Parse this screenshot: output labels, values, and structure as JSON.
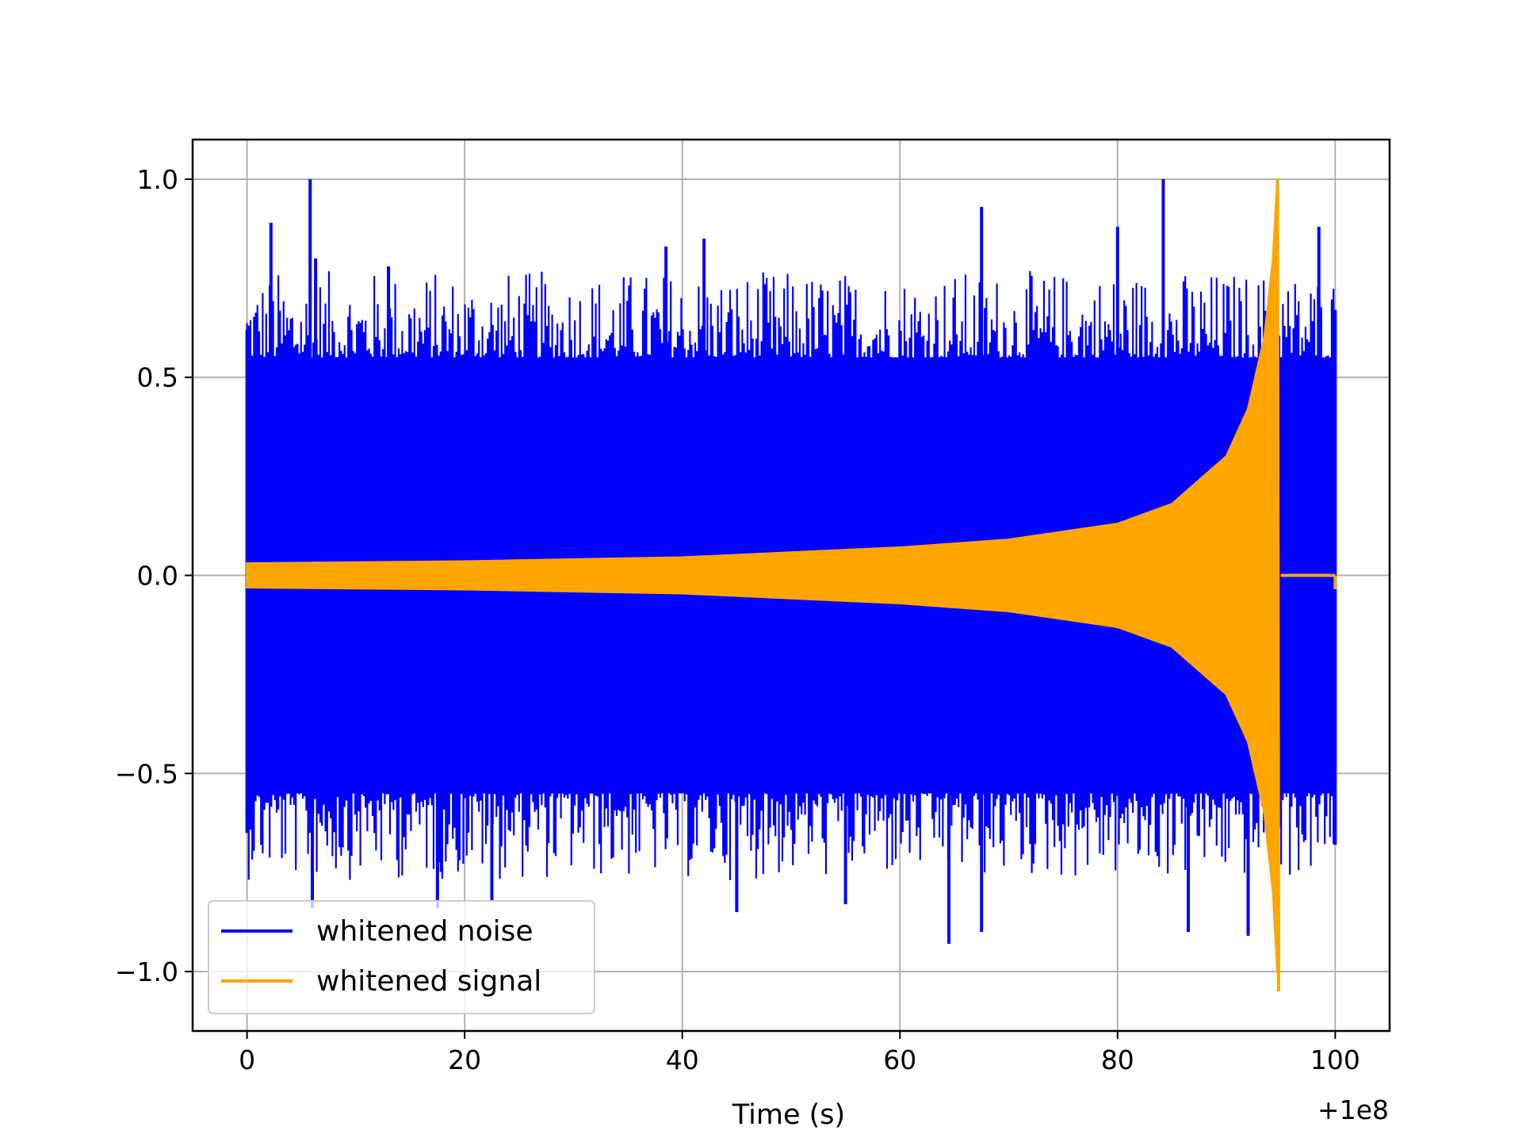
{
  "chart_data": {
    "type": "line",
    "title": "",
    "xlabel": "Time (s)",
    "ylabel": "",
    "x_offset_label": "+1e8",
    "xlim": [
      -5,
      105
    ],
    "ylim": [
      -1.15,
      1.1
    ],
    "xticks": [
      0,
      20,
      40,
      60,
      80,
      100
    ],
    "xtick_labels": [
      "0",
      "20",
      "40",
      "60",
      "80",
      "100"
    ],
    "yticks": [
      1.0,
      0.5,
      0.0,
      -0.5,
      -1.0
    ],
    "ytick_labels": [
      "1.0",
      "0.5",
      "0.0",
      "−0.5",
      "−1.0"
    ],
    "grid": true,
    "legend_position": "lower-left",
    "series": [
      {
        "name": "whitened noise",
        "color": "#0000ff",
        "x_range": [
          0,
          100
        ],
        "envelope": {
          "max": 0.55,
          "min": -0.55
        },
        "peak_max": [
          {
            "x": 0.0,
            "y": 0.62
          },
          {
            "x": 2.2,
            "y": 0.89
          },
          {
            "x": 5.8,
            "y": 1.0
          },
          {
            "x": 6.3,
            "y": 0.8
          },
          {
            "x": 13.0,
            "y": 0.78
          },
          {
            "x": 38.5,
            "y": 0.83
          },
          {
            "x": 42.0,
            "y": 0.85
          },
          {
            "x": 67.5,
            "y": 0.93
          },
          {
            "x": 80.0,
            "y": 0.88
          },
          {
            "x": 84.2,
            "y": 1.0
          },
          {
            "x": 98.5,
            "y": 0.88
          },
          {
            "x": 100.0,
            "y": 0.67
          }
        ],
        "peak_min": [
          {
            "x": 0.0,
            "y": -0.65
          },
          {
            "x": 6.0,
            "y": -0.84
          },
          {
            "x": 17.5,
            "y": -0.84
          },
          {
            "x": 22.5,
            "y": -0.82
          },
          {
            "x": 45.0,
            "y": -0.85
          },
          {
            "x": 55.0,
            "y": -0.83
          },
          {
            "x": 64.5,
            "y": -0.93
          },
          {
            "x": 67.5,
            "y": -0.9
          },
          {
            "x": 86.5,
            "y": -0.9
          },
          {
            "x": 92.0,
            "y": -0.91
          },
          {
            "x": 100.0,
            "y": -0.68
          }
        ]
      },
      {
        "name": "whitened signal",
        "color": "#ffa500",
        "envelope_points": [
          {
            "x": 0,
            "y": 0.03
          },
          {
            "x": 20,
            "y": 0.035
          },
          {
            "x": 40,
            "y": 0.045
          },
          {
            "x": 60,
            "y": 0.07
          },
          {
            "x": 70,
            "y": 0.09
          },
          {
            "x": 80,
            "y": 0.13
          },
          {
            "x": 85,
            "y": 0.18
          },
          {
            "x": 90,
            "y": 0.3
          },
          {
            "x": 92,
            "y": 0.42
          },
          {
            "x": 93.5,
            "y": 0.6
          },
          {
            "x": 94.3,
            "y": 0.8
          },
          {
            "x": 94.7,
            "y": 1.0
          },
          {
            "x": 94.8,
            "y": -1.05
          },
          {
            "x": 95.0,
            "y": 0.0
          },
          {
            "x": 100,
            "y": 0.0
          }
        ]
      }
    ]
  }
}
